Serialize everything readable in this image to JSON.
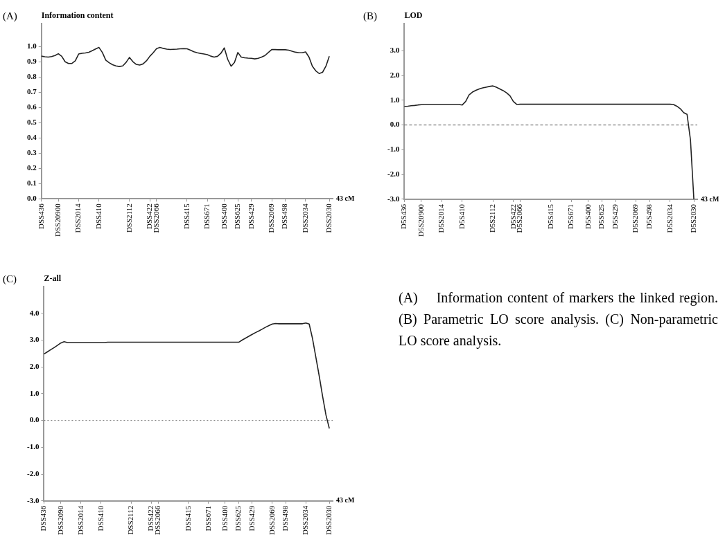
{
  "chart_data": [
    {
      "type": "line",
      "title": "(A)",
      "ylabel": "Information content",
      "xlabel": "43 cM",
      "marker": "none",
      "ylim": [
        0,
        1.15
      ],
      "categories": [
        "DSS436",
        null,
        null,
        null,
        null,
        "DSS20900",
        null,
        null,
        null,
        null,
        null,
        "DSS2014",
        null,
        null,
        null,
        null,
        null,
        "DSS410",
        null,
        null,
        null,
        null,
        null,
        null,
        null,
        null,
        "DSS2112",
        null,
        null,
        null,
        null,
        null,
        "DSS422",
        null,
        "DSS2066",
        null,
        null,
        null,
        null,
        null,
        null,
        null,
        null,
        "DSS415",
        null,
        null,
        null,
        null,
        null,
        "DSS671",
        null,
        null,
        null,
        null,
        "DSS400",
        null,
        null,
        null,
        "DSS625",
        null,
        null,
        null,
        "DSS429",
        null,
        null,
        null,
        null,
        null,
        "DSS2069",
        null,
        null,
        null,
        "DSS498",
        null,
        null,
        null,
        null,
        null,
        "DSS2034",
        null,
        null,
        null,
        null,
        null,
        null,
        "DSS2030",
        null
      ],
      "yticks": [
        {
          "value": 0,
          "label": "0.0"
        },
        {
          "value": 0.1,
          "label": "0.1"
        },
        {
          "value": 0.2,
          "label": "0.2"
        },
        {
          "value": 0.3,
          "label": "0.3"
        },
        {
          "value": 0.4,
          "label": "0.4"
        },
        {
          "value": 0.5,
          "label": "0.5"
        },
        {
          "value": 0.6,
          "label": "0.6"
        },
        {
          "value": 0.7,
          "label": "0.7"
        },
        {
          "value": 0.8,
          "label": "0.8"
        },
        {
          "value": 0.9,
          "label": "0.9"
        },
        {
          "value": 1,
          "label": "1.0"
        }
      ],
      "series": [
        {
          "color": "#222222",
          "values": [
            0.936,
            0.932,
            0.93,
            0.933,
            0.94,
            0.952,
            0.935,
            0.899,
            0.888,
            0.888,
            0.905,
            0.95,
            0.955,
            0.957,
            0.962,
            0.972,
            0.983,
            0.993,
            0.96,
            0.91,
            0.893,
            0.88,
            0.872,
            0.868,
            0.872,
            0.895,
            0.928,
            0.9,
            0.882,
            0.878,
            0.885,
            0.905,
            0.935,
            0.958,
            0.985,
            0.993,
            0.987,
            0.982,
            0.98,
            0.981,
            0.982,
            0.984,
            0.985,
            0.984,
            0.975,
            0.965,
            0.958,
            0.954,
            0.95,
            0.946,
            0.936,
            0.93,
            0.935,
            0.955,
            0.99,
            0.915,
            0.87,
            0.895,
            0.96,
            0.93,
            0.925,
            0.923,
            0.922,
            0.918,
            0.922,
            0.93,
            0.94,
            0.96,
            0.979,
            0.979,
            0.978,
            0.978,
            0.978,
            0.975,
            0.968,
            0.962,
            0.958,
            0.958,
            0.964,
            0.93,
            0.87,
            0.84,
            0.822,
            0.83,
            0.87,
            0.935,
            null
          ]
        }
      ]
    },
    {
      "type": "line",
      "title": "(B)",
      "ylabel": "LOD",
      "xlabel": "43 cM",
      "marker": "none",
      "ylim": [
        -3,
        4.1
      ],
      "categories": [
        "D5S436",
        null,
        null,
        null,
        null,
        "D5S20900",
        null,
        null,
        null,
        null,
        null,
        "D5S2014",
        null,
        null,
        null,
        null,
        null,
        "D5S410",
        null,
        null,
        null,
        null,
        null,
        null,
        null,
        null,
        "D5S2112",
        null,
        null,
        null,
        null,
        null,
        "D5S422",
        null,
        "D5S2066",
        null,
        null,
        null,
        null,
        null,
        null,
        null,
        null,
        "D5S415",
        null,
        null,
        null,
        null,
        null,
        "D5S671",
        null,
        null,
        null,
        null,
        "D5S400",
        null,
        null,
        null,
        "D5S625",
        null,
        null,
        null,
        "D5S429",
        null,
        null,
        null,
        null,
        null,
        "D5S2069",
        null,
        null,
        null,
        "D5S498",
        null,
        null,
        null,
        null,
        null,
        "D5S2034",
        null,
        null,
        null,
        null,
        null,
        null,
        "D5S2030",
        null
      ],
      "yticks": [
        {
          "value": -3,
          "label": "-3.0"
        },
        {
          "value": -2,
          "label": "-2.0"
        },
        {
          "value": -1,
          "label": "-1.0"
        },
        {
          "value": 0,
          "label": "0.0"
        },
        {
          "value": 1,
          "label": "1.0"
        },
        {
          "value": 2,
          "label": "2.0"
        },
        {
          "value": 3,
          "label": "3.0"
        }
      ],
      "ref_lines": [
        {
          "axis": "y",
          "value": 0,
          "color": "#555555",
          "line_style": "dashed"
        }
      ],
      "series": [
        {
          "color": "#222222",
          "values": [
            0.75,
            0.76,
            0.78,
            0.79,
            0.81,
            0.82,
            0.83,
            0.83,
            0.83,
            0.83,
            0.83,
            0.83,
            0.83,
            0.83,
            0.83,
            0.83,
            0.83,
            0.81,
            0.95,
            1.22,
            1.33,
            1.4,
            1.46,
            1.5,
            1.53,
            1.56,
            1.58,
            1.53,
            1.46,
            1.39,
            1.3,
            1.18,
            0.95,
            0.83,
            0.84,
            0.84,
            0.84,
            0.84,
            0.84,
            0.84,
            0.84,
            0.84,
            0.84,
            0.84,
            0.84,
            0.84,
            0.84,
            0.84,
            0.84,
            0.84,
            0.84,
            0.84,
            0.84,
            0.84,
            0.84,
            0.84,
            0.84,
            0.84,
            0.84,
            0.84,
            0.84,
            0.84,
            0.84,
            0.84,
            0.84,
            0.84,
            0.84,
            0.84,
            0.84,
            0.84,
            0.84,
            0.84,
            0.84,
            0.84,
            0.84,
            0.84,
            0.84,
            0.84,
            0.84,
            0.83,
            0.76,
            0.66,
            0.5,
            0.43,
            -0.6,
            -3.0,
            null
          ]
        }
      ]
    },
    {
      "type": "line",
      "title": "(C)",
      "ylabel": "Z-all",
      "xlabel": "43 cM",
      "marker": "none",
      "ylim": [
        -3,
        5
      ],
      "categories": [
        "DSS436",
        null,
        null,
        null,
        null,
        "DSS2090",
        null,
        null,
        null,
        null,
        null,
        "DSS2014",
        null,
        null,
        null,
        null,
        null,
        "DSS410",
        null,
        null,
        null,
        null,
        null,
        null,
        null,
        null,
        "DSS2112",
        null,
        null,
        null,
        null,
        null,
        "DSS422",
        null,
        "DSS2066",
        null,
        null,
        null,
        null,
        null,
        null,
        null,
        null,
        "DSS415",
        null,
        null,
        null,
        null,
        null,
        "DSS671",
        null,
        null,
        null,
        null,
        "DSS400",
        null,
        null,
        null,
        "DSS625",
        null,
        null,
        null,
        "DSS429",
        null,
        null,
        null,
        null,
        null,
        "DSS2069",
        null,
        null,
        null,
        "DSS498",
        null,
        null,
        null,
        null,
        null,
        "DSS2034",
        null,
        null,
        null,
        null,
        null,
        null,
        "DSS2030",
        null
      ],
      "yticks": [
        {
          "value": -3,
          "label": "-3.0"
        },
        {
          "value": -2,
          "label": "-2.0"
        },
        {
          "value": -1,
          "label": "-1.0"
        },
        {
          "value": 0,
          "label": "0.0"
        },
        {
          "value": 1,
          "label": "1.0"
        },
        {
          "value": 2,
          "label": "2.0"
        },
        {
          "value": 3,
          "label": "3.0"
        },
        {
          "value": 4,
          "label": "4.0"
        }
      ],
      "ref_lines": [
        {
          "axis": "y",
          "value": 0,
          "color": "#777777",
          "line_style": "dotted"
        }
      ],
      "series": [
        {
          "color": "#222222",
          "values": [
            2.48,
            2.56,
            2.64,
            2.72,
            2.8,
            2.89,
            2.94,
            2.91,
            2.91,
            2.91,
            2.91,
            2.91,
            2.91,
            2.91,
            2.91,
            2.91,
            2.91,
            2.91,
            2.91,
            2.92,
            2.92,
            2.92,
            2.92,
            2.92,
            2.92,
            2.92,
            2.92,
            2.92,
            2.92,
            2.92,
            2.92,
            2.92,
            2.92,
            2.92,
            2.92,
            2.92,
            2.92,
            2.92,
            2.92,
            2.92,
            2.92,
            2.92,
            2.92,
            2.92,
            2.92,
            2.92,
            2.92,
            2.92,
            2.92,
            2.92,
            2.92,
            2.92,
            2.92,
            2.92,
            2.92,
            2.92,
            2.92,
            2.92,
            2.92,
            3.0,
            3.07,
            3.14,
            3.21,
            3.28,
            3.34,
            3.41,
            3.48,
            3.54,
            3.6,
            3.62,
            3.61,
            3.61,
            3.61,
            3.61,
            3.61,
            3.61,
            3.61,
            3.61,
            3.64,
            3.6,
            3.05,
            2.35,
            1.65,
            0.9,
            0.2,
            -0.3,
            null
          ]
        }
      ]
    },
    {
      "type": "other",
      "annotations": [
        "(A)    Information content of markers the linked region. (B) Parametric LO score analysis. (C) Non-parametric LO score analysis."
      ]
    }
  ]
}
